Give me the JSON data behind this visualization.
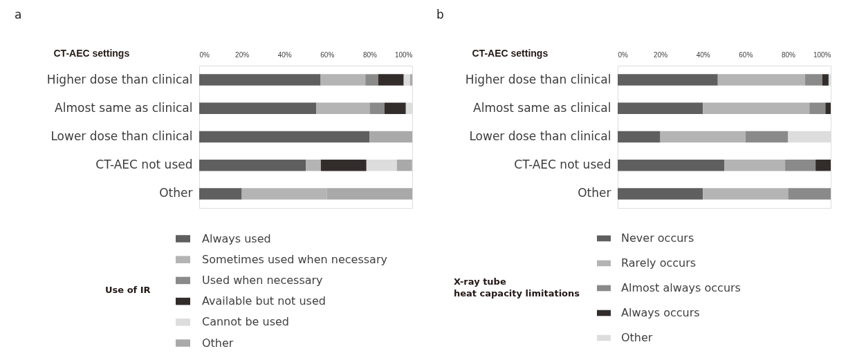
{
  "chart_data": [
    {
      "type": "bar",
      "orientation": "horizontal",
      "stacked": true,
      "title": "a",
      "ylabel": "CT-AEC settings",
      "legend_title": "Use of IR",
      "legend": "bottom",
      "grid": false,
      "categories": [
        "Higher dose than clinical",
        "Almost same as clinical",
        "Lower dose than clinical",
        "CT-AEC not used",
        "Other"
      ],
      "xlim": [
        0,
        100
      ],
      "xticks": [
        {
          "value": 0,
          "label": "0%"
        },
        {
          "value": 20,
          "label": "20%"
        },
        {
          "value": 40,
          "label": "40%"
        },
        {
          "value": 60,
          "label": "60%"
        },
        {
          "value": 80,
          "label": "80%"
        },
        {
          "value": 100,
          "label": "100%"
        }
      ],
      "series": [
        {
          "name": "Always used",
          "color": "#5f5f5f",
          "values": [
            57,
            55,
            80,
            50,
            20
          ]
        },
        {
          "name": "Sometimes used when necessary",
          "color": "#b4b4b4",
          "values": [
            21,
            25,
            null,
            7.1,
            40
          ]
        },
        {
          "name": "Used when necessary",
          "color": "#8a8a8a",
          "values": [
            6,
            7,
            null,
            null,
            null
          ]
        },
        {
          "name": "Available but not used",
          "color": "#322c2a",
          "values": [
            12,
            10,
            null,
            21.4,
            null
          ]
        },
        {
          "name": "Cannot be used",
          "color": "#dddddd",
          "values": [
            3,
            3,
            null,
            14.3,
            null
          ]
        },
        {
          "name": "Other",
          "color": "#a9a9a9",
          "values": [
            1,
            null,
            20,
            7.1,
            40
          ]
        }
      ]
    },
    {
      "type": "bar",
      "orientation": "horizontal",
      "stacked": true,
      "title": "b",
      "ylabel": "CT-AEC settings",
      "legend_title": "X-ray tube\nheat capacity limitations",
      "legend": "bottom",
      "grid": false,
      "categories": [
        "Higher dose than clinical",
        "Almost same as clinical",
        "Lower dose than clinical",
        "CT-AEC not used",
        "Other"
      ],
      "xlim": [
        0,
        100
      ],
      "xticks": [
        {
          "value": 0,
          "label": "0%"
        },
        {
          "value": 20,
          "label": "20%"
        },
        {
          "value": 40,
          "label": "40%"
        },
        {
          "value": 60,
          "label": "60%"
        },
        {
          "value": 80,
          "label": "80%"
        },
        {
          "value": 100,
          "label": "100%"
        }
      ],
      "series": [
        {
          "name": "Never occurs",
          "color": "#5f5f5f",
          "values": [
            47,
            40,
            20,
            50,
            40
          ]
        },
        {
          "name": "Rarely occurs",
          "color": "#b4b4b4",
          "values": [
            41,
            50,
            40,
            28.6,
            40
          ]
        },
        {
          "name": "Almost always occurs",
          "color": "#8a8a8a",
          "values": [
            8,
            7.5,
            20,
            14.3,
            20
          ]
        },
        {
          "name": "Always occurs",
          "color": "#322c2a",
          "values": [
            3,
            2.5,
            null,
            7.1,
            null
          ]
        },
        {
          "name": "Other",
          "color": "#dddddd",
          "values": [
            1,
            null,
            20,
            null,
            null
          ]
        }
      ]
    }
  ]
}
